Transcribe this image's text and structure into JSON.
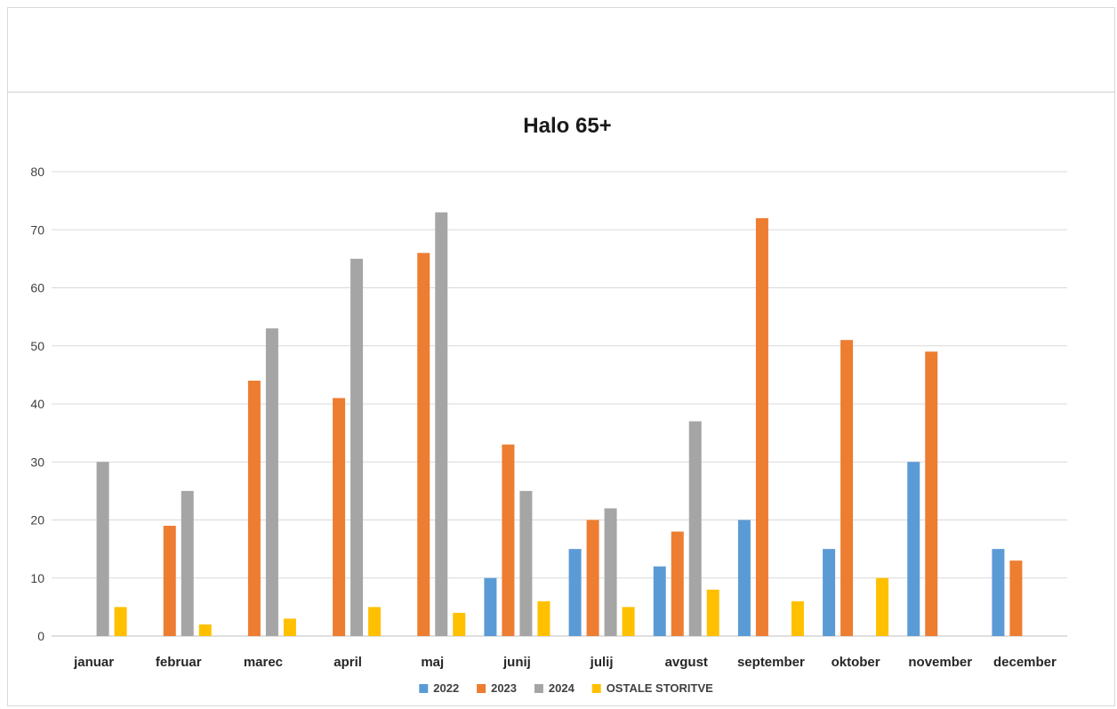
{
  "chart_data": {
    "type": "bar",
    "title": "Halo 65+",
    "xlabel": "",
    "ylabel": "",
    "ylim": [
      0,
      80
    ],
    "yticks": [
      0,
      10,
      20,
      30,
      40,
      50,
      60,
      70,
      80
    ],
    "grid": true,
    "legend_position": "bottom",
    "categories": [
      "januar",
      "februar",
      "marec",
      "april",
      "maj",
      "junij",
      "julij",
      "avgust",
      "september",
      "oktober",
      "november",
      "december"
    ],
    "series": [
      {
        "name": "2022",
        "color": "#5b9bd5",
        "values": [
          0,
          0,
          0,
          0,
          0,
          10,
          15,
          12,
          20,
          15,
          30,
          15
        ]
      },
      {
        "name": "2023",
        "color": "#ed7d31",
        "values": [
          0,
          19,
          44,
          41,
          66,
          33,
          20,
          18,
          72,
          51,
          49,
          13
        ]
      },
      {
        "name": "2024",
        "color": "#a5a5a5",
        "values": [
          30,
          25,
          53,
          65,
          73,
          25,
          22,
          37,
          0,
          0,
          0,
          0
        ]
      },
      {
        "name": "OSTALE STORITVE",
        "color": "#ffc000",
        "values": [
          5,
          2,
          3,
          5,
          4,
          6,
          5,
          8,
          6,
          10,
          0,
          0
        ]
      }
    ]
  }
}
